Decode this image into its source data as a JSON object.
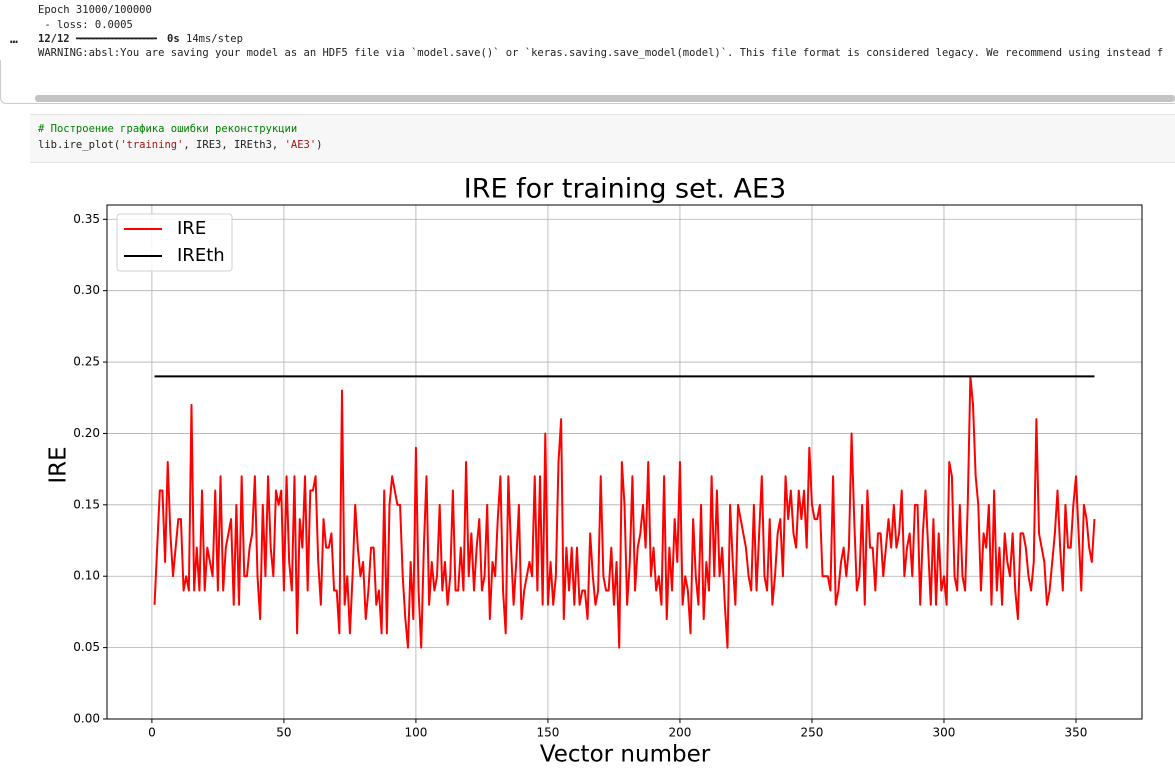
{
  "output": {
    "lines": [
      "Epoch 31000/100000",
      " - loss: 0.0005"
    ],
    "prompt": "…",
    "step": "12/12",
    "bar": "━━━━━━━━━━━━━━━━━━━━",
    "time": "0s",
    "rate": "14ms/step",
    "warning": "WARNING:absl:You are saving your model as an HDF5 file via `model.save()` or `keras.saving.save_model(model)`. This file format is considered legacy. We recommend using instead f"
  },
  "code": {
    "comment": "# Построение графика ошибки реконструкции",
    "tokens": [
      "lib.ire_plot(",
      "'training'",
      ", IRE3, IREth3, ",
      "'AE3'",
      ")"
    ]
  },
  "chart_data": {
    "type": "line",
    "title": "IRE for training set. AE3",
    "x_label": "Vector number",
    "y_label": "IRE",
    "xlim": [
      -17,
      375
    ],
    "ylim": [
      0,
      0.36
    ],
    "xticks": [
      0,
      50,
      100,
      150,
      200,
      250,
      300,
      350
    ],
    "yticks": [
      {
        "value": 0,
        "label": "0.00"
      },
      0.05,
      {
        "value": 0.1,
        "label": "0.10"
      },
      0.15,
      {
        "value": 0.2,
        "label": "0.20"
      },
      0.25,
      {
        "value": 0.3,
        "label": "0.30"
      },
      0.35
    ],
    "grid": true,
    "legend": "upper left",
    "x": [
      1,
      2,
      3,
      4,
      5,
      6,
      7,
      8,
      9,
      10,
      11,
      12,
      13,
      14,
      15,
      16,
      17,
      18,
      19,
      20,
      21,
      22,
      23,
      24,
      25,
      26,
      27,
      28,
      29,
      30,
      31,
      32,
      33,
      34,
      35,
      36,
      37,
      38,
      39,
      40,
      41,
      42,
      43,
      44,
      45,
      46,
      47,
      48,
      49,
      50,
      51,
      52,
      53,
      54,
      55,
      56,
      57,
      58,
      59,
      60,
      61,
      62,
      63,
      64,
      65,
      66,
      67,
      68,
      69,
      70,
      71,
      72,
      73,
      74,
      75,
      76,
      77,
      78,
      79,
      80,
      81,
      82,
      83,
      84,
      85,
      86,
      87,
      88,
      89,
      90,
      91,
      92,
      93,
      94,
      95,
      96,
      97,
      98,
      99,
      100,
      101,
      102,
      103,
      104,
      105,
      106,
      107,
      108,
      109,
      110,
      111,
      112,
      113,
      114,
      115,
      116,
      117,
      118,
      119,
      120,
      121,
      122,
      123,
      124,
      125,
      126,
      127,
      128,
      129,
      130,
      131,
      132,
      133,
      134,
      135,
      136,
      137,
      138,
      139,
      140,
      141,
      142,
      143,
      144,
      145,
      146,
      147,
      148,
      149,
      150,
      151,
      152,
      153,
      154,
      155,
      156,
      157,
      158,
      159,
      160,
      161,
      162,
      163,
      164,
      165,
      166,
      167,
      168,
      169,
      170,
      171,
      172,
      173,
      174,
      175,
      176,
      177,
      178,
      179,
      180,
      181,
      182,
      183,
      184,
      185,
      186,
      187,
      188,
      189,
      190,
      191,
      192,
      193,
      194,
      195,
      196,
      197,
      198,
      199,
      200,
      201,
      202,
      203,
      204,
      205,
      206,
      207,
      208,
      209,
      210,
      211,
      212,
      213,
      214,
      215,
      216,
      217,
      218,
      219,
      220,
      221,
      222,
      223,
      224,
      225,
      226,
      227,
      228,
      229,
      230,
      231,
      232,
      233,
      234,
      235,
      236,
      237,
      238,
      239,
      240,
      241,
      242,
      243,
      244,
      245,
      246,
      247,
      248,
      249,
      250,
      251,
      252,
      253,
      254,
      255,
      256,
      257,
      258,
      259,
      260,
      261,
      262,
      263,
      264,
      265,
      266,
      267,
      268,
      269,
      270,
      271,
      272,
      273,
      274,
      275,
      276,
      277,
      278,
      279,
      280,
      281,
      282,
      283,
      284,
      285,
      286,
      287,
      288,
      289,
      290,
      291,
      292,
      293,
      294,
      295,
      296,
      297,
      298,
      299,
      300,
      301,
      302,
      303,
      304,
      305,
      306,
      307,
      308,
      309,
      310,
      311,
      312,
      313,
      314,
      315,
      316,
      317,
      318,
      319,
      320,
      321,
      322,
      323,
      324,
      325,
      326,
      327,
      328,
      329,
      330,
      331,
      332,
      333,
      334,
      335,
      336,
      337,
      338,
      339,
      340,
      341,
      342,
      343,
      344,
      345,
      346,
      347,
      348,
      349,
      350,
      351,
      352,
      353,
      354,
      355,
      356,
      357
    ],
    "series": [
      {
        "name": "IRE",
        "color": "#ff0000",
        "values": [
          0.08,
          0.12,
          0.16,
          0.16,
          0.11,
          0.18,
          0.13,
          0.1,
          0.12,
          0.14,
          0.14,
          0.09,
          0.1,
          0.09,
          0.22,
          0.09,
          0.12,
          0.09,
          0.16,
          0.09,
          0.12,
          0.11,
          0.1,
          0.16,
          0.09,
          0.17,
          0.09,
          0.12,
          0.13,
          0.14,
          0.08,
          0.15,
          0.08,
          0.17,
          0.1,
          0.1,
          0.12,
          0.13,
          0.17,
          0.1,
          0.07,
          0.15,
          0.1,
          0.17,
          0.12,
          0.1,
          0.16,
          0.15,
          0.16,
          0.09,
          0.17,
          0.11,
          0.09,
          0.17,
          0.06,
          0.14,
          0.12,
          0.17,
          0.09,
          0.16,
          0.16,
          0.17,
          0.11,
          0.08,
          0.14,
          0.12,
          0.12,
          0.13,
          0.09,
          0.09,
          0.06,
          0.23,
          0.08,
          0.1,
          0.06,
          0.1,
          0.15,
          0.12,
          0.1,
          0.11,
          0.07,
          0.09,
          0.12,
          0.12,
          0.08,
          0.09,
          0.06,
          0.16,
          0.06,
          0.15,
          0.17,
          0.16,
          0.15,
          0.15,
          0.1,
          0.07,
          0.05,
          0.11,
          0.07,
          0.19,
          0.09,
          0.05,
          0.12,
          0.17,
          0.08,
          0.11,
          0.09,
          0.1,
          0.15,
          0.09,
          0.11,
          0.08,
          0.1,
          0.16,
          0.09,
          0.09,
          0.12,
          0.09,
          0.18,
          0.1,
          0.13,
          0.09,
          0.12,
          0.14,
          0.09,
          0.1,
          0.15,
          0.07,
          0.11,
          0.1,
          0.14,
          0.17,
          0.09,
          0.06,
          0.17,
          0.12,
          0.08,
          0.11,
          0.15,
          0.07,
          0.09,
          0.1,
          0.11,
          0.1,
          0.17,
          0.09,
          0.17,
          0.08,
          0.2,
          0.08,
          0.11,
          0.08,
          0.1,
          0.18,
          0.21,
          0.07,
          0.12,
          0.09,
          0.12,
          0.08,
          0.12,
          0.08,
          0.09,
          0.09,
          0.07,
          0.13,
          0.1,
          0.08,
          0.09,
          0.17,
          0.1,
          0.09,
          0.09,
          0.12,
          0.08,
          0.11,
          0.05,
          0.18,
          0.15,
          0.08,
          0.11,
          0.17,
          0.09,
          0.12,
          0.13,
          0.15,
          0.12,
          0.18,
          0.1,
          0.12,
          0.09,
          0.1,
          0.08,
          0.17,
          0.07,
          0.12,
          0.09,
          0.14,
          0.11,
          0.18,
          0.08,
          0.1,
          0.09,
          0.06,
          0.14,
          0.1,
          0.08,
          0.15,
          0.07,
          0.11,
          0.09,
          0.17,
          0.1,
          0.16,
          0.1,
          0.12,
          0.08,
          0.05,
          0.15,
          0.11,
          0.08,
          0.15,
          0.14,
          0.13,
          0.12,
          0.1,
          0.09,
          0.15,
          0.09,
          0.13,
          0.17,
          0.1,
          0.09,
          0.14,
          0.08,
          0.1,
          0.13,
          0.14,
          0.1,
          0.17,
          0.14,
          0.16,
          0.13,
          0.12,
          0.16,
          0.14,
          0.16,
          0.12,
          0.19,
          0.15,
          0.14,
          0.14,
          0.15,
          0.1,
          0.1,
          0.1,
          0.09,
          0.17,
          0.08,
          0.09,
          0.11,
          0.12,
          0.1,
          0.12,
          0.2,
          0.14,
          0.09,
          0.1,
          0.15,
          0.08,
          0.16,
          0.12,
          0.12,
          0.09,
          0.13,
          0.13,
          0.1,
          0.12,
          0.14,
          0.12,
          0.15,
          0.12,
          0.13,
          0.16,
          0.1,
          0.12,
          0.13,
          0.1,
          0.15,
          0.15,
          0.08,
          0.13,
          0.16,
          0.12,
          0.08,
          0.14,
          0.08,
          0.13,
          0.09,
          0.1,
          0.08,
          0.18,
          0.17,
          0.1,
          0.09,
          0.15,
          0.1,
          0.09,
          0.15,
          0.24,
          0.22,
          0.17,
          0.15,
          0.09,
          0.13,
          0.12,
          0.15,
          0.08,
          0.16,
          0.09,
          0.12,
          0.08,
          0.13,
          0.11,
          0.1,
          0.13,
          0.09,
          0.07,
          0.13,
          0.13,
          0.12,
          0.1,
          0.09,
          0.11,
          0.21,
          0.13,
          0.12,
          0.11,
          0.08,
          0.09,
          0.11,
          0.13,
          0.16,
          0.12,
          0.09,
          0.15,
          0.12,
          0.12,
          0.15,
          0.17,
          0.13,
          0.09,
          0.15,
          0.14,
          0.12,
          0.11,
          0.14
        ]
      },
      {
        "name": "IREth",
        "color": "#000000",
        "x": [
          1,
          357
        ],
        "values": [
          0.24,
          0.24
        ]
      }
    ]
  }
}
